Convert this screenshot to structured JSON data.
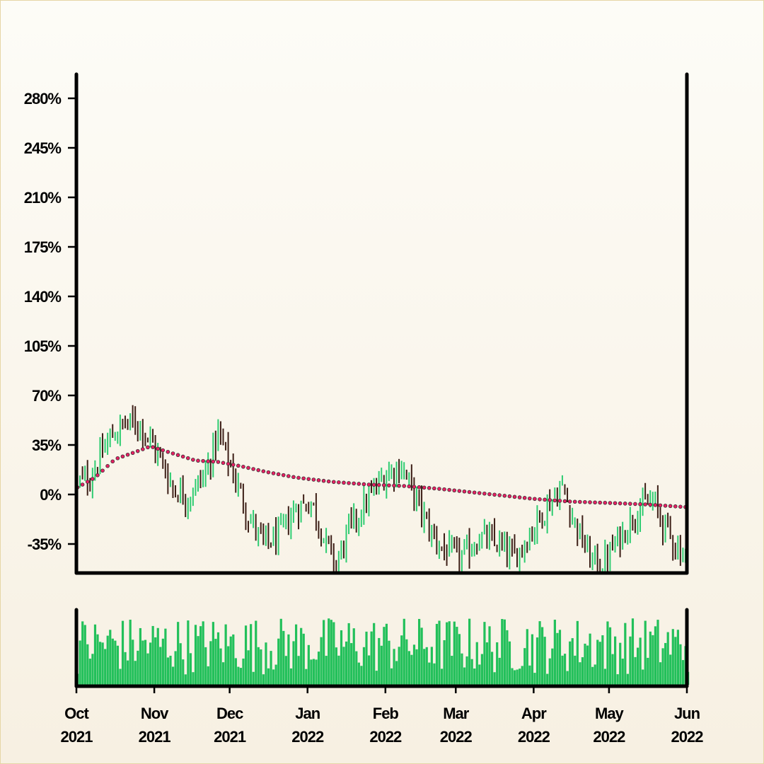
{
  "chart_data": [
    {
      "type": "candlestick",
      "title": "",
      "xlabel": "",
      "ylabel": "",
      "y_unit": "percent",
      "ylim": [
        -55,
        295
      ],
      "yticks": [
        -35,
        0,
        35,
        70,
        105,
        140,
        175,
        210,
        245,
        280
      ],
      "ytick_labels": [
        "-35%",
        "0%",
        "35%",
        "70%",
        "105%",
        "140%",
        "175%",
        "210%",
        "245%",
        "280%"
      ],
      "x_start": "2021-10-01",
      "x_end": "2022-06-01",
      "xticks": [
        {
          "date": "2021-10-01",
          "label": [
            "Oct",
            "2021"
          ]
        },
        {
          "date": "2021-11-01",
          "label": [
            "Nov",
            "2021"
          ]
        },
        {
          "date": "2021-12-01",
          "label": [
            "Dec",
            "2021"
          ]
        },
        {
          "date": "2022-01-01",
          "label": [
            "Jan",
            "2022"
          ]
        },
        {
          "date": "2022-02-01",
          "label": [
            "Feb",
            "2022"
          ]
        },
        {
          "date": "2022-03-01",
          "label": [
            "Mar",
            "2022"
          ]
        },
        {
          "date": "2022-04-01",
          "label": [
            "Apr",
            "2022"
          ]
        },
        {
          "date": "2022-05-01",
          "label": [
            "May",
            "2022"
          ]
        },
        {
          "date": "2022-06-01",
          "label": [
            "Jun",
            "2022"
          ]
        }
      ],
      "colors": {
        "up": "#2ecc71",
        "down": "#3d1f17",
        "moving_average": "#e91e63",
        "moving_average_edge": "#333333"
      },
      "close_anchors": [
        {
          "date": "2021-10-01",
          "close": 8
        },
        {
          "date": "2021-10-06",
          "close": 12
        },
        {
          "date": "2021-10-14",
          "close": 40
        },
        {
          "date": "2021-10-20",
          "close": 50
        },
        {
          "date": "2021-10-26",
          "close": 50
        },
        {
          "date": "2021-11-01",
          "close": 32
        },
        {
          "date": "2021-11-08",
          "close": 5
        },
        {
          "date": "2021-11-14",
          "close": -2
        },
        {
          "date": "2021-11-21",
          "close": 15
        },
        {
          "date": "2021-11-26",
          "close": 43
        },
        {
          "date": "2021-12-02",
          "close": 15
        },
        {
          "date": "2021-12-08",
          "close": -15
        },
        {
          "date": "2021-12-14",
          "close": -35
        },
        {
          "date": "2021-12-20",
          "close": -30
        },
        {
          "date": "2021-12-27",
          "close": -10
        },
        {
          "date": "2022-01-02",
          "close": -5
        },
        {
          "date": "2022-01-08",
          "close": -35
        },
        {
          "date": "2022-01-12",
          "close": -50
        },
        {
          "date": "2022-01-17",
          "close": -25
        },
        {
          "date": "2022-01-24",
          "close": -5
        },
        {
          "date": "2022-02-01",
          "close": 15
        },
        {
          "date": "2022-02-07",
          "close": 20
        },
        {
          "date": "2022-02-12",
          "close": 0
        },
        {
          "date": "2022-02-18",
          "close": -25
        },
        {
          "date": "2022-02-24",
          "close": -40
        },
        {
          "date": "2022-03-03",
          "close": -45
        },
        {
          "date": "2022-03-10",
          "close": -30
        },
        {
          "date": "2022-03-17",
          "close": -35
        },
        {
          "date": "2022-03-24",
          "close": -45
        },
        {
          "date": "2022-03-31",
          "close": -25
        },
        {
          "date": "2022-04-07",
          "close": -5
        },
        {
          "date": "2022-04-12",
          "close": 5
        },
        {
          "date": "2022-04-17",
          "close": -20
        },
        {
          "date": "2022-04-23",
          "close": -45
        },
        {
          "date": "2022-04-28",
          "close": -50
        },
        {
          "date": "2022-05-05",
          "close": -30
        },
        {
          "date": "2022-05-12",
          "close": -10
        },
        {
          "date": "2022-05-18",
          "close": -5
        },
        {
          "date": "2022-05-22",
          "close": -20
        },
        {
          "date": "2022-05-27",
          "close": -35
        },
        {
          "date": "2022-06-01",
          "close": -45
        }
      ],
      "moving_average": [
        {
          "date": "2021-10-01",
          "value": 5
        },
        {
          "date": "2021-10-08",
          "value": 12
        },
        {
          "date": "2021-10-16",
          "value": 25
        },
        {
          "date": "2021-10-24",
          "value": 30
        },
        {
          "date": "2021-10-30",
          "value": 34
        },
        {
          "date": "2021-11-08",
          "value": 29
        },
        {
          "date": "2021-11-17",
          "value": 24
        },
        {
          "date": "2021-11-26",
          "value": 23
        },
        {
          "date": "2021-12-05",
          "value": 20
        },
        {
          "date": "2021-12-15",
          "value": 16
        },
        {
          "date": "2021-12-27",
          "value": 12
        },
        {
          "date": "2022-01-10",
          "value": 9
        },
        {
          "date": "2022-01-25",
          "value": 7
        },
        {
          "date": "2022-02-08",
          "value": 6
        },
        {
          "date": "2022-02-22",
          "value": 4
        },
        {
          "date": "2022-03-10",
          "value": 1
        },
        {
          "date": "2022-03-31",
          "value": -3
        },
        {
          "date": "2022-04-15",
          "value": -5
        },
        {
          "date": "2022-05-01",
          "value": -6
        },
        {
          "date": "2022-05-15",
          "value": -7
        },
        {
          "date": "2022-06-01",
          "value": -9
        }
      ]
    },
    {
      "type": "bar",
      "title": "",
      "xlabel": "",
      "ylabel": "",
      "name": "volume",
      "color": "#22c05a",
      "x_start": "2021-10-01",
      "x_end": "2022-06-01",
      "relative_value_range": [
        0.0,
        1.0
      ],
      "note_values": "daily relative volume, one bar per day"
    }
  ]
}
